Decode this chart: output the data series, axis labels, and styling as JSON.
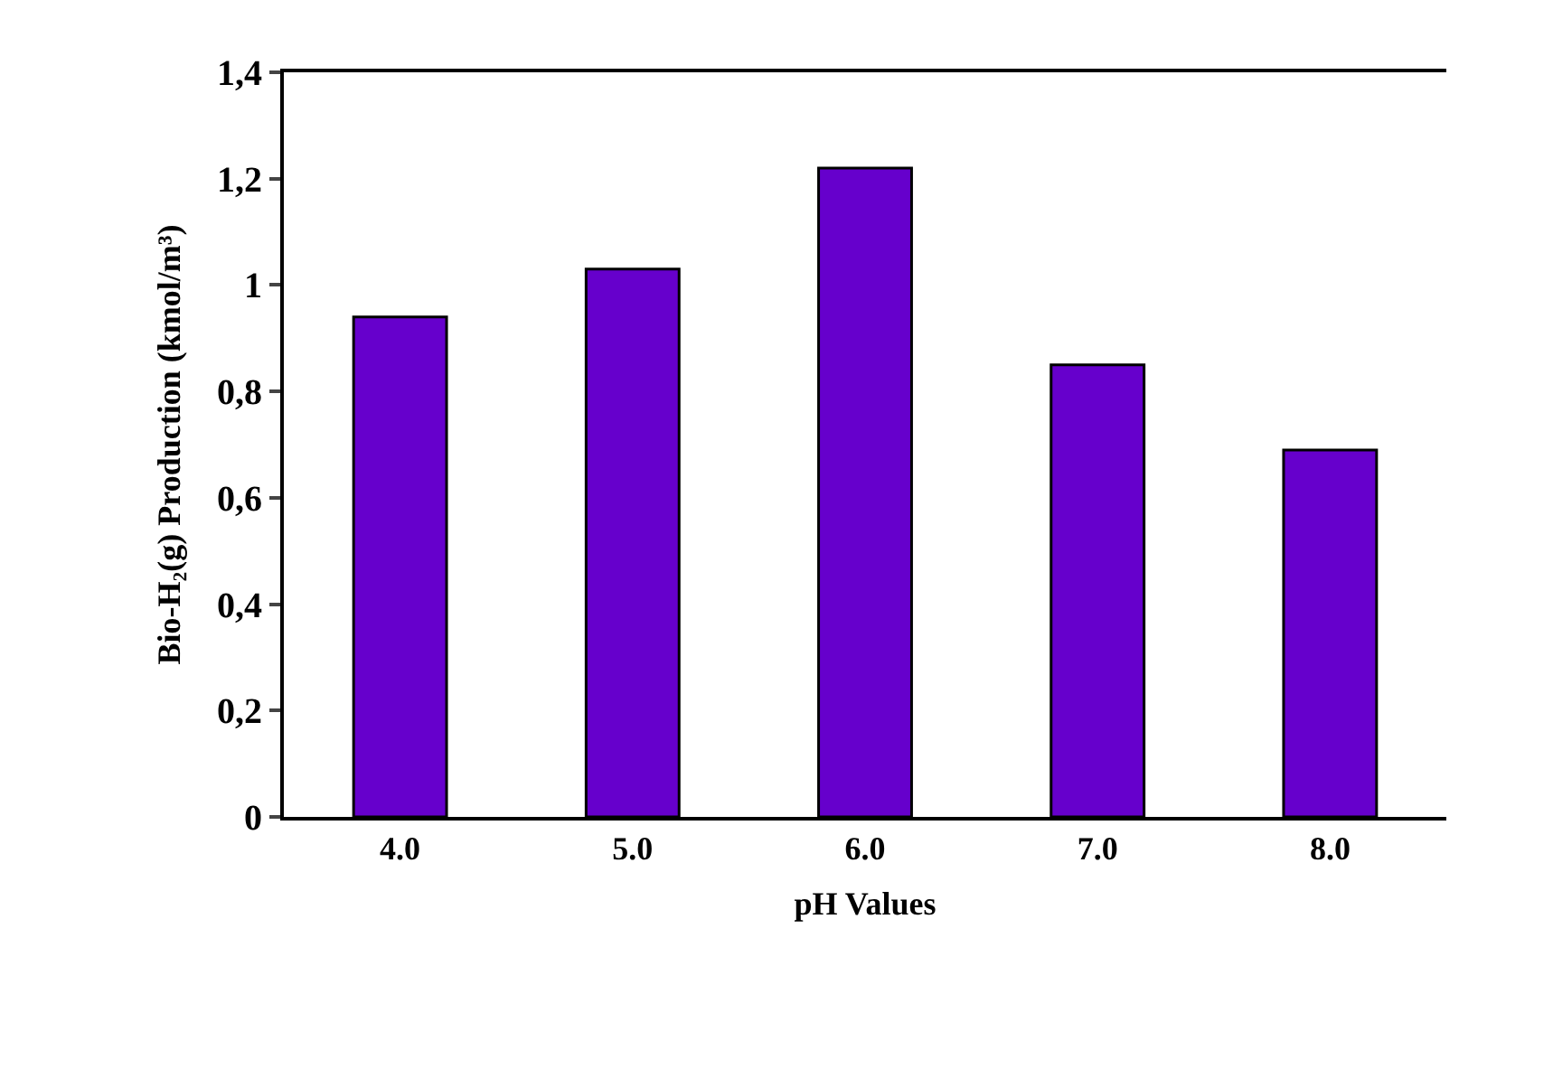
{
  "chart_data": {
    "type": "bar",
    "xlabel": "pH Values",
    "ylabel": "Bio-H₂(g) Production (kmol/m³)",
    "categories": [
      "4.0",
      "5.0",
      "6.0",
      "7.0",
      "8.0"
    ],
    "values": [
      0.94,
      1.03,
      1.22,
      0.85,
      0.69
    ],
    "color": "#6600cc",
    "ylim": [
      0,
      1.4
    ],
    "yticks": [
      0,
      {
        "value": 0.2,
        "label": "0,2"
      },
      {
        "value": 0.4,
        "label": "0,4"
      },
      {
        "value": 0.6,
        "label": "0,6"
      },
      {
        "value": 0.8,
        "label": "0,8"
      },
      1,
      {
        "value": 1.2,
        "label": "1,2"
      },
      {
        "value": 1.4,
        "label": "1,4"
      }
    ],
    "legend": false
  }
}
